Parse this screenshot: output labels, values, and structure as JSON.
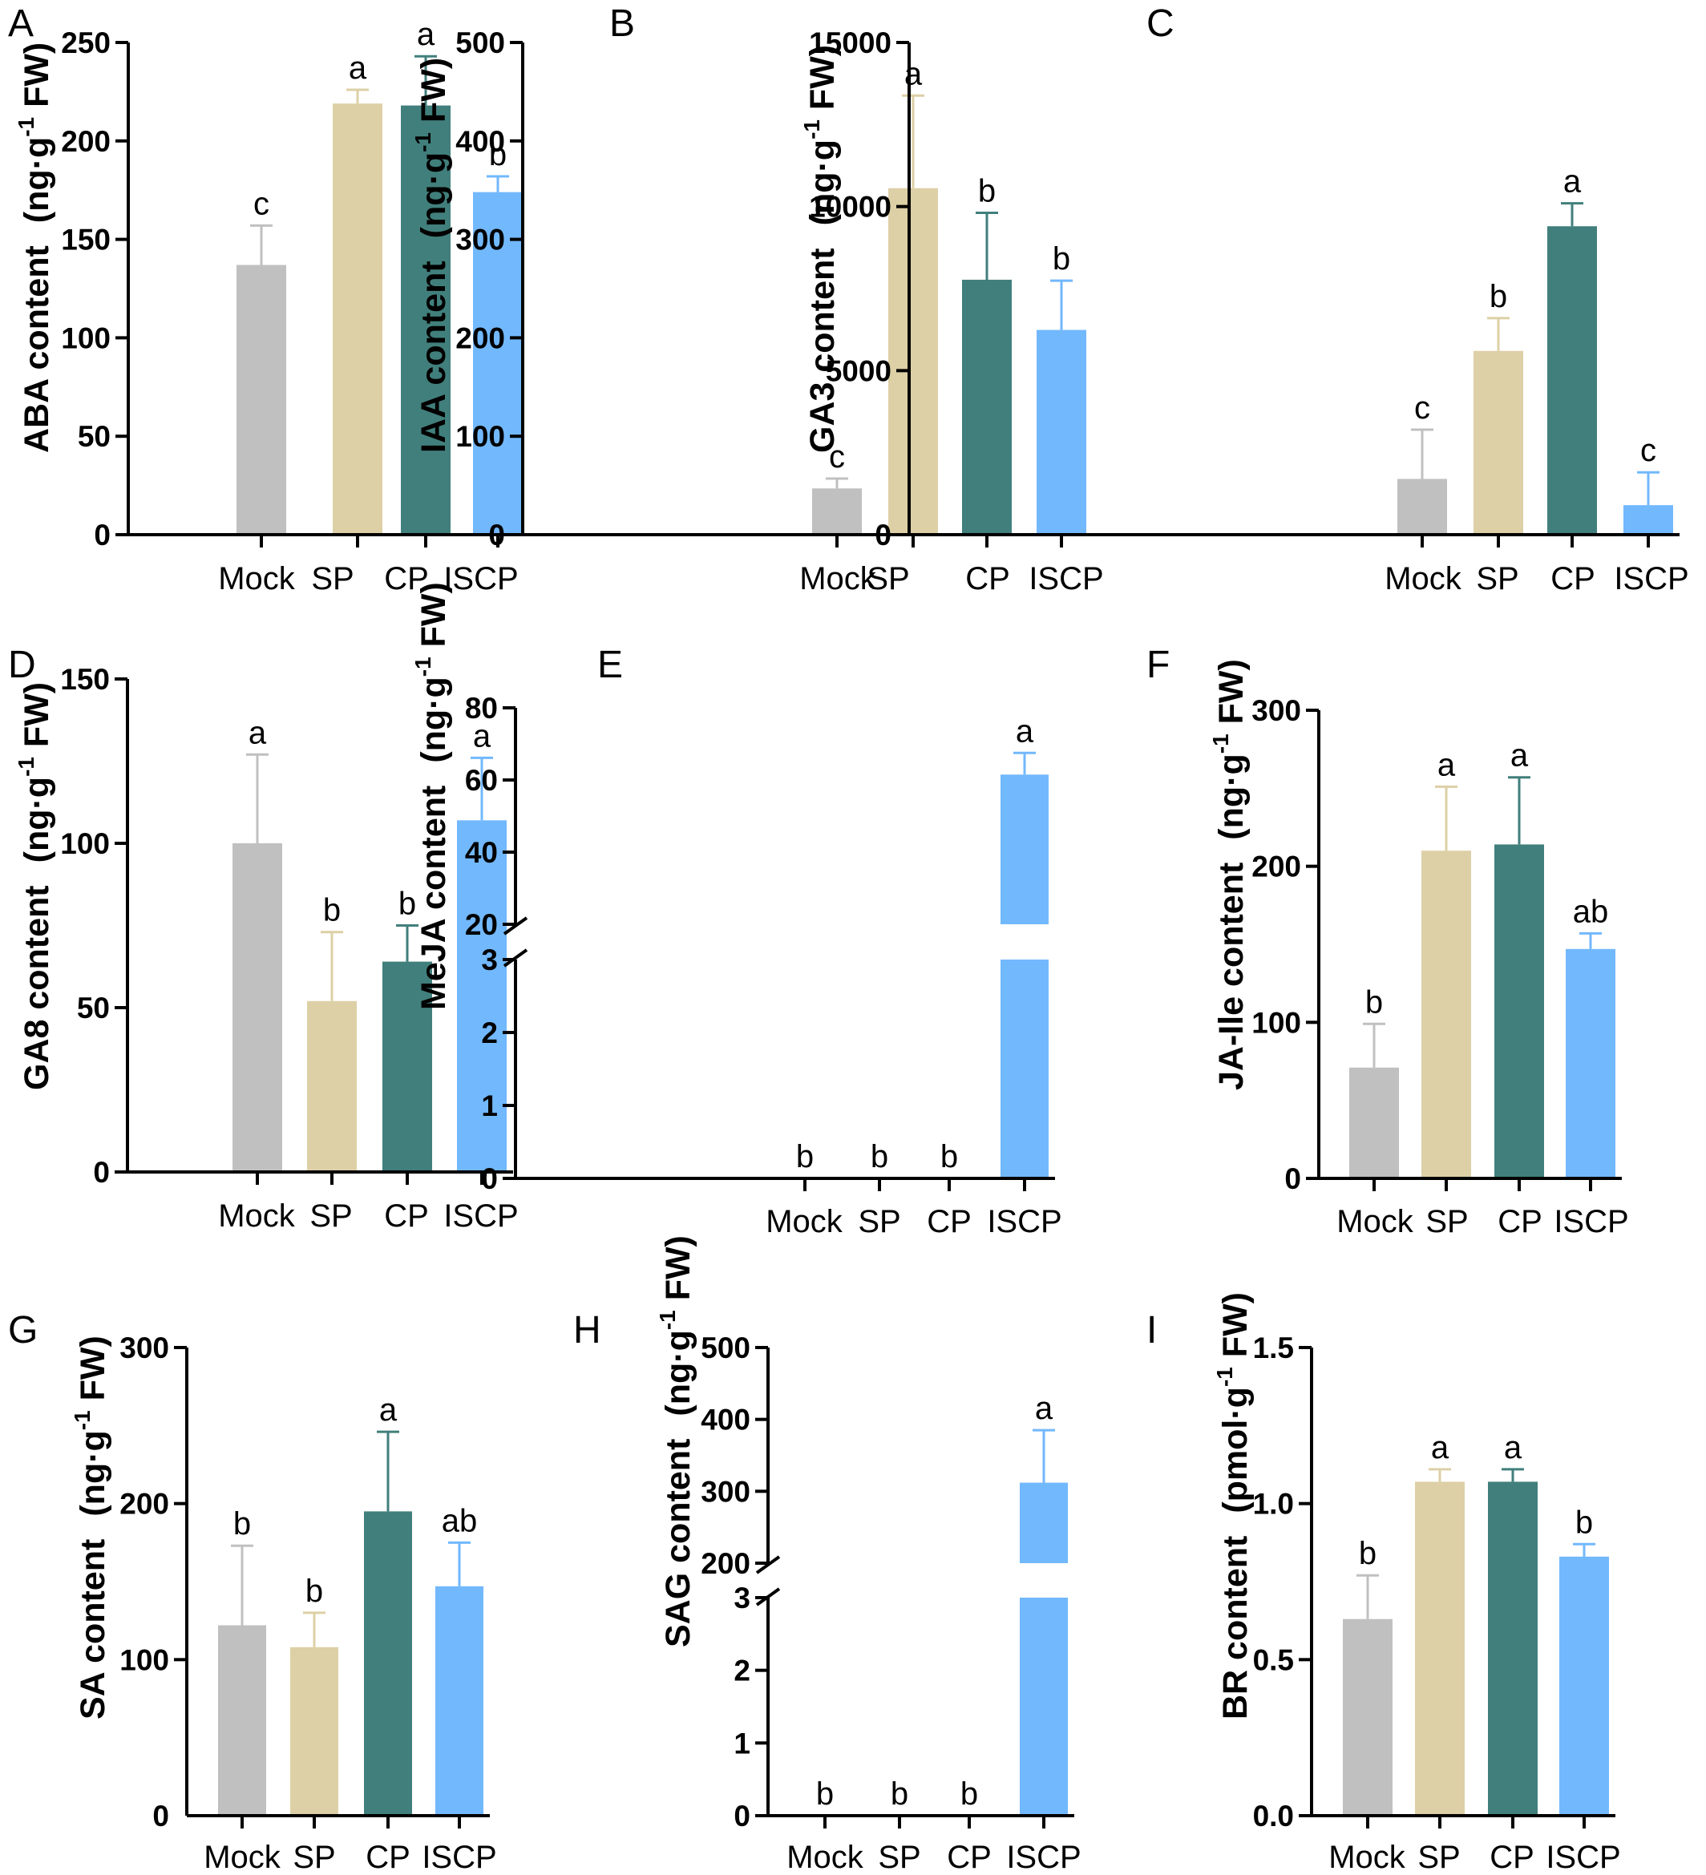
{
  "colors": {
    "Mock": "#c0c0c0",
    "SP": "#ddd0a6",
    "CP": "#417f7c",
    "ISCP": "#72b8fd",
    "axis": "#000000"
  },
  "chart_data": [
    {
      "panel": "A",
      "type": "bar",
      "categories": [
        "Mock",
        "SP",
        "CP",
        "ISCP"
      ],
      "values": [
        137,
        219,
        218,
        174
      ],
      "errors": [
        20,
        7,
        25,
        8
      ],
      "significance": [
        "c",
        "a",
        "a",
        "b"
      ],
      "ylabel_main": "ABA content",
      "ylabel_unit_a": "(ng·g",
      "ylabel_sup": "-1",
      "ylabel_unit_b": " FW)",
      "ylim": [
        0,
        250
      ],
      "yticks": [
        0,
        50,
        100,
        150,
        200,
        250
      ],
      "ytick_labels": [
        "0",
        "50",
        "100",
        "150",
        "200",
        "250"
      ]
    },
    {
      "panel": "B",
      "type": "bar",
      "categories": [
        "Mock",
        "SP",
        "CP",
        "ISCP"
      ],
      "values": [
        47,
        352,
        259,
        208
      ],
      "errors": [
        10,
        94,
        68,
        50
      ],
      "significance": [
        "c",
        "a",
        "b",
        "b"
      ],
      "ylabel_main": "IAA content",
      "ylabel_unit_a": "(ng·g",
      "ylabel_sup": "-1",
      "ylabel_unit_b": " FW)",
      "ylim": [
        0,
        500
      ],
      "yticks": [
        0,
        100,
        200,
        300,
        400,
        500
      ],
      "ytick_labels": [
        "0",
        "100",
        "200",
        "300",
        "400",
        "500"
      ]
    },
    {
      "panel": "C",
      "type": "bar",
      "categories": [
        "Mock",
        "SP",
        "CP",
        "ISCP"
      ],
      "values": [
        1700,
        5600,
        9400,
        900
      ],
      "errors": [
        1500,
        1000,
        700,
        1000
      ],
      "significance": [
        "c",
        "b",
        "a",
        "c"
      ],
      "ylabel_main": "GA3 content",
      "ylabel_unit_a": "(ng·g",
      "ylabel_sup": "-1",
      "ylabel_unit_b": " FW)",
      "ylim": [
        0,
        15000
      ],
      "yticks": [
        0,
        5000,
        10000,
        15000
      ],
      "ytick_labels": [
        "0",
        "5000",
        "10000",
        "15000"
      ]
    },
    {
      "panel": "D",
      "type": "bar",
      "categories": [
        "Mock",
        "SP",
        "CP",
        "ISCP"
      ],
      "values": [
        100,
        52,
        64,
        107
      ],
      "errors": [
        27,
        21,
        11,
        19
      ],
      "significance": [
        "a",
        "b",
        "b",
        "a"
      ],
      "ylabel_main": "GA8 content",
      "ylabel_unit_a": "(ng·g",
      "ylabel_sup": "-1",
      "ylabel_unit_b": " FW)",
      "ylim": [
        0,
        150
      ],
      "yticks": [
        0,
        50,
        100,
        150
      ],
      "ytick_labels": [
        "0",
        "50",
        "100",
        "150"
      ]
    },
    {
      "panel": "E",
      "type": "bar",
      "categories": [
        "Mock",
        "SP",
        "CP",
        "ISCP"
      ],
      "values": [
        0,
        0,
        0,
        61.5
      ],
      "errors": [
        0,
        0,
        0,
        6
      ],
      "significance": [
        "b",
        "b",
        "b",
        "a"
      ],
      "ylabel_main": "MeJA content",
      "ylabel_unit_a": "(ng·g",
      "ylabel_sup": "-1",
      "ylabel_unit_b": " FW)",
      "axis_break": {
        "lower": [
          0,
          3
        ],
        "upper": [
          20,
          80
        ]
      },
      "yticks": [
        0,
        1,
        2,
        3,
        20,
        40,
        60,
        80
      ],
      "ytick_labels": [
        "0",
        "1",
        "2",
        "3",
        "20",
        "40",
        "60",
        "80"
      ]
    },
    {
      "panel": "F",
      "type": "bar",
      "categories": [
        "Mock",
        "SP",
        "CP",
        "ISCP"
      ],
      "values": [
        71,
        210,
        214,
        147
      ],
      "errors": [
        28,
        41,
        43,
        10
      ],
      "significance": [
        "b",
        "a",
        "a",
        "ab"
      ],
      "ylabel_main": "JA-Ile content",
      "ylabel_unit_a": "(ng·g",
      "ylabel_sup": "-1",
      "ylabel_unit_b": " FW)",
      "ylim": [
        0,
        300
      ],
      "yticks": [
        0,
        100,
        200,
        300
      ],
      "ytick_labels": [
        "0",
        "100",
        "200",
        "300"
      ]
    },
    {
      "panel": "G",
      "type": "bar",
      "categories": [
        "Mock",
        "SP",
        "CP",
        "ISCP"
      ],
      "values": [
        122,
        108,
        195,
        147
      ],
      "errors": [
        51,
        22,
        51,
        28
      ],
      "significance": [
        "b",
        "b",
        "a",
        "ab"
      ],
      "ylabel_main": "SA content",
      "ylabel_unit_a": "(ng·g",
      "ylabel_sup": "-1",
      "ylabel_unit_b": " FW)",
      "ylim": [
        0,
        300
      ],
      "yticks": [
        100,
        200,
        300
      ],
      "ytick_labels": [
        "100",
        "200",
        "300"
      ],
      "baseline_label": "0"
    },
    {
      "panel": "H",
      "type": "bar",
      "categories": [
        "Mock",
        "SP",
        "CP",
        "ISCP"
      ],
      "values": [
        0,
        0,
        0,
        312
      ],
      "errors": [
        0,
        0,
        0,
        73
      ],
      "significance": [
        "b",
        "b",
        "b",
        "a"
      ],
      "ylabel_main": "SAG content",
      "ylabel_unit_a": "(ng·g",
      "ylabel_sup": "-1",
      "ylabel_unit_b": " FW)",
      "axis_break": {
        "lower": [
          0,
          3
        ],
        "upper": [
          200,
          500
        ]
      },
      "yticks": [
        0,
        1,
        2,
        3,
        200,
        300,
        400,
        500
      ],
      "ytick_labels": [
        "0",
        "1",
        "2",
        "3",
        "200",
        "300",
        "400",
        "500"
      ]
    },
    {
      "panel": "I",
      "type": "bar",
      "categories": [
        "Mock",
        "SP",
        "CP",
        "ISCP"
      ],
      "values": [
        0.63,
        1.07,
        1.07,
        0.83
      ],
      "errors": [
        0.14,
        0.04,
        0.04,
        0.04
      ],
      "significance": [
        "b",
        "a",
        "a",
        "b"
      ],
      "ylabel_main": "BR content",
      "ylabel_unit_a": "(pmol·g",
      "ylabel_sup": "-1",
      "ylabel_unit_b": " FW)",
      "ylim": [
        0,
        1.5
      ],
      "yticks": [
        0,
        0.5,
        1.0,
        1.5
      ],
      "ytick_labels": [
        "0.0",
        "0.5",
        "1.0",
        "1.5"
      ]
    }
  ]
}
